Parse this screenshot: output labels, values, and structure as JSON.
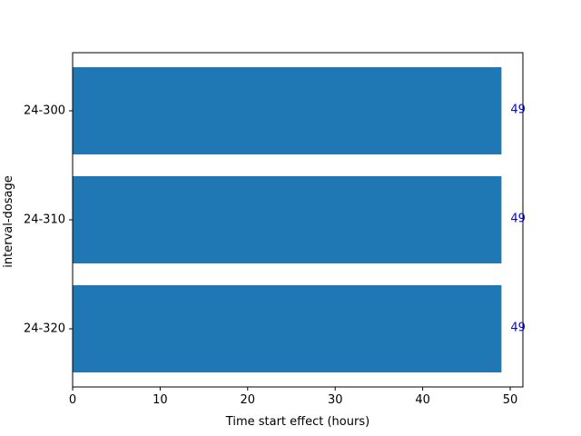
{
  "chart_data": {
    "type": "bar",
    "orientation": "horizontal",
    "categories": [
      "24-300",
      "24-310",
      "24-320"
    ],
    "values": [
      49,
      49,
      49
    ],
    "data_labels": [
      "49",
      "49",
      "49"
    ],
    "title": "",
    "xlabel": "Time start effect (hours)",
    "ylabel": "interval-dosage",
    "xlim": [
      0,
      51.45
    ],
    "xticks": [
      0,
      10,
      20,
      30,
      40,
      50
    ],
    "xtick_labels": [
      "0",
      "10",
      "20",
      "30",
      "40",
      "50"
    ],
    "grid": false,
    "legend": "none",
    "bar_color": "#1f77b4",
    "data_label_color": "#0000ff"
  }
}
